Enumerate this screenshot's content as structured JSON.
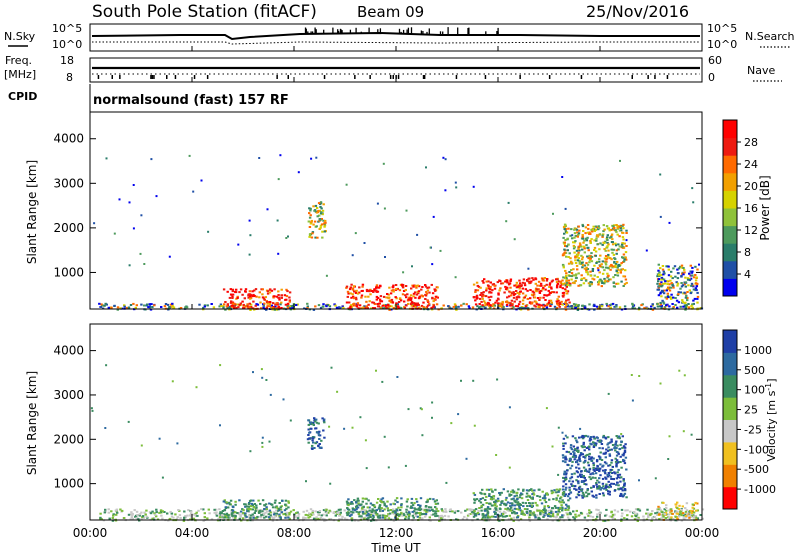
{
  "header": {
    "title": "South Pole Station (fitACF)",
    "beam": "Beam 09",
    "date": "25/Nov/2016"
  },
  "status_panels": {
    "nsky_label": "N.Sky",
    "nsearch_label": "N.Search",
    "freq_label_line1": "Freq.",
    "freq_label_line2": "[MHz]",
    "nave_label": "Nave",
    "cpid_label": "CPID",
    "cpid_value": "normalsound (fast) 157 RF",
    "noise_left_ticks": [
      "10^5",
      "10^0"
    ],
    "noise_right_ticks": [
      "10^5",
      "10^0"
    ],
    "freq_left_ticks": [
      "18",
      "8"
    ],
    "nave_right_ticks": [
      "60",
      "0"
    ]
  },
  "power_colorbar": {
    "label": "Power [dB]",
    "ticks": [
      "28",
      "24",
      "20",
      "16",
      "12",
      "8",
      "4"
    ],
    "colors": [
      "#0000ee",
      "#1f4fa6",
      "#2a7d6a",
      "#4d9a5c",
      "#8fc23a",
      "#d6d200",
      "#f2a000",
      "#ff6a00",
      "#ee1a10",
      "#ff0000"
    ]
  },
  "velocity_colorbar": {
    "label_main": "Velocity [m s",
    "label_exp": "-1",
    "label_close": "]",
    "ticks": [
      "1000",
      "500",
      "100",
      "25",
      "-25",
      "-100",
      "-500",
      "-1000"
    ],
    "colors": [
      "#1f3fa6",
      "#2d6aa0",
      "#3a8c60",
      "#7cbd3a",
      "#c8c8c8",
      "#f0c020",
      "#f08000",
      "#ff0000"
    ]
  },
  "chart_data": [
    {
      "type": "heatmap",
      "name_hint": "power",
      "ylabel": "Slant Range [km]",
      "xlabel": "",
      "y_ticks": [
        "1000",
        "2000",
        "3000",
        "4000"
      ],
      "y_tick_values": [
        1000,
        2000,
        3000,
        4000
      ],
      "ylim": [
        180,
        4600
      ],
      "xlim_hours": [
        0,
        24
      ],
      "features": [
        {
          "x0": 0.3,
          "x1": 24,
          "r0": 180,
          "r1": 320,
          "level": "low"
        },
        {
          "x0": 5.2,
          "x1": 7.8,
          "r0": 200,
          "r1": 650,
          "level": "high"
        },
        {
          "x0": 10.0,
          "x1": 13.6,
          "r0": 200,
          "r1": 750,
          "level": "high"
        },
        {
          "x0": 15.0,
          "x1": 18.8,
          "r0": 250,
          "r1": 900,
          "level": "high"
        },
        {
          "x0": 8.5,
          "x1": 9.2,
          "r0": 1800,
          "r1": 2600,
          "level": "mid"
        },
        {
          "x0": 18.5,
          "x1": 21.0,
          "r0": 700,
          "r1": 2100,
          "level": "mid"
        },
        {
          "x0": 22.2,
          "x1": 23.8,
          "r0": 250,
          "r1": 1200,
          "level": "low"
        }
      ]
    },
    {
      "type": "heatmap",
      "name_hint": "velocity",
      "ylabel": "Slant Range [km]",
      "xlabel": "Time UT",
      "x_ticks": [
        "00:00",
        "04:00",
        "08:00",
        "12:00",
        "16:00",
        "20:00",
        "00:00"
      ],
      "x_tick_hours": [
        0,
        4,
        8,
        12,
        16,
        20,
        24
      ],
      "y_ticks": [
        "1000",
        "2000",
        "3000",
        "4000"
      ],
      "y_tick_values": [
        1000,
        2000,
        3000,
        4000
      ],
      "ylim": [
        180,
        4600
      ],
      "xlim_hours": [
        0,
        24
      ],
      "features": [
        {
          "x0": 0.3,
          "x1": 24,
          "r0": 180,
          "r1": 450,
          "level": "grey"
        },
        {
          "x0": 5.2,
          "x1": 7.8,
          "r0": 250,
          "r1": 650,
          "level": "green"
        },
        {
          "x0": 10.0,
          "x1": 13.6,
          "r0": 250,
          "r1": 700,
          "level": "green"
        },
        {
          "x0": 15.0,
          "x1": 18.8,
          "r0": 250,
          "r1": 900,
          "level": "green"
        },
        {
          "x0": 8.5,
          "x1": 9.2,
          "r0": 1800,
          "r1": 2500,
          "level": "blue"
        },
        {
          "x0": 18.5,
          "x1": 21.0,
          "r0": 700,
          "r1": 2100,
          "level": "blue"
        },
        {
          "x0": 22.2,
          "x1": 23.8,
          "r0": 200,
          "r1": 600,
          "level": "orange"
        }
      ]
    }
  ]
}
